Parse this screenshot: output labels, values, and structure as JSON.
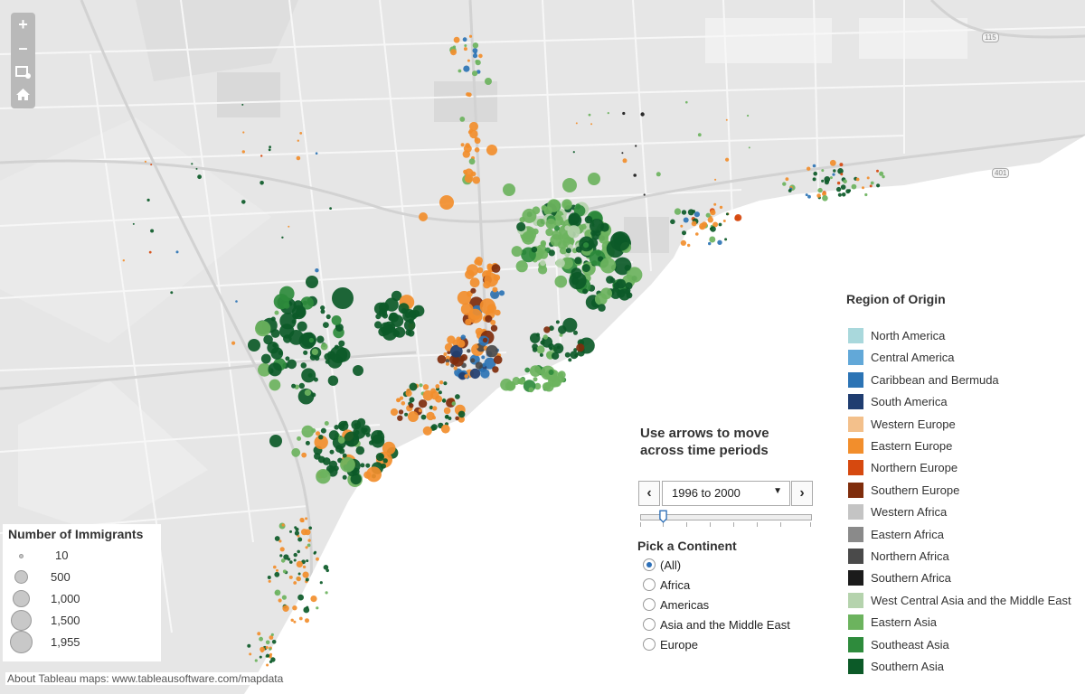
{
  "map": {
    "highway_shields": [
      "115",
      "401"
    ],
    "attribution": "About Tableau maps: www.tableausoftware.com/mapdata",
    "colors": {
      "land": "#e6e6e6",
      "land_block": "#dcdcdc",
      "water": "#ffffff",
      "road": "#f6f6f6",
      "road_edge": "#cfcfcf"
    }
  },
  "zoom_controls": {
    "icons": [
      "zoom-in-icon",
      "zoom-out-icon",
      "select-area-icon",
      "home-icon"
    ],
    "zoom_in_glyph": "+",
    "zoom_out_glyph": "–"
  },
  "size_legend": {
    "title": "Number of Immigrants",
    "levels": [
      {
        "label": "10",
        "value": 10
      },
      {
        "label": "500",
        "value": 500
      },
      {
        "label": "1,000",
        "value": 1000
      },
      {
        "label": "1,500",
        "value": 1500
      },
      {
        "label": "1,955",
        "value": 1955
      }
    ]
  },
  "region_legend": {
    "title": "Region of Origin",
    "items": [
      {
        "label": "North America",
        "color": "#a9d8dc"
      },
      {
        "label": "Central America",
        "color": "#62a8d8"
      },
      {
        "label": "Caribbean and Bermuda",
        "color": "#2c74b5"
      },
      {
        "label": "South America",
        "color": "#1f3d70"
      },
      {
        "label": "Western Europe",
        "color": "#f3c08b"
      },
      {
        "label": "Eastern Europe",
        "color": "#f28e2c"
      },
      {
        "label": "Northern Europe",
        "color": "#d6490f"
      },
      {
        "label": "Southern Europe",
        "color": "#7f2d0c"
      },
      {
        "label": "Western Africa",
        "color": "#c4c4c4"
      },
      {
        "label": "Eastern Africa",
        "color": "#8a8a8a"
      },
      {
        "label": "Northern Africa",
        "color": "#4a4a4a"
      },
      {
        "label": "Southern Africa",
        "color": "#1b1b1b"
      },
      {
        "label": "West Central Asia and the Middle East",
        "color": "#b5d3ad"
      },
      {
        "label": "Eastern Asia",
        "color": "#6cb35e"
      },
      {
        "label": "Southeast Asia",
        "color": "#2e8b3c"
      },
      {
        "label": "Southern Asia",
        "color": "#0c5a28"
      }
    ]
  },
  "time_control": {
    "title": "Use arrows to move across time periods",
    "prev_glyph": "‹",
    "next_glyph": "›",
    "selected_period": "1996 to 2000",
    "caret_glyph": "▼"
  },
  "continent_filter": {
    "title": "Pick a Continent",
    "options": [
      {
        "label": "(All)",
        "selected": true
      },
      {
        "label": "Africa",
        "selected": false
      },
      {
        "label": "Americas",
        "selected": false
      },
      {
        "label": "Asia and the Middle East",
        "selected": false
      },
      {
        "label": "Europe",
        "selected": false
      }
    ]
  }
}
